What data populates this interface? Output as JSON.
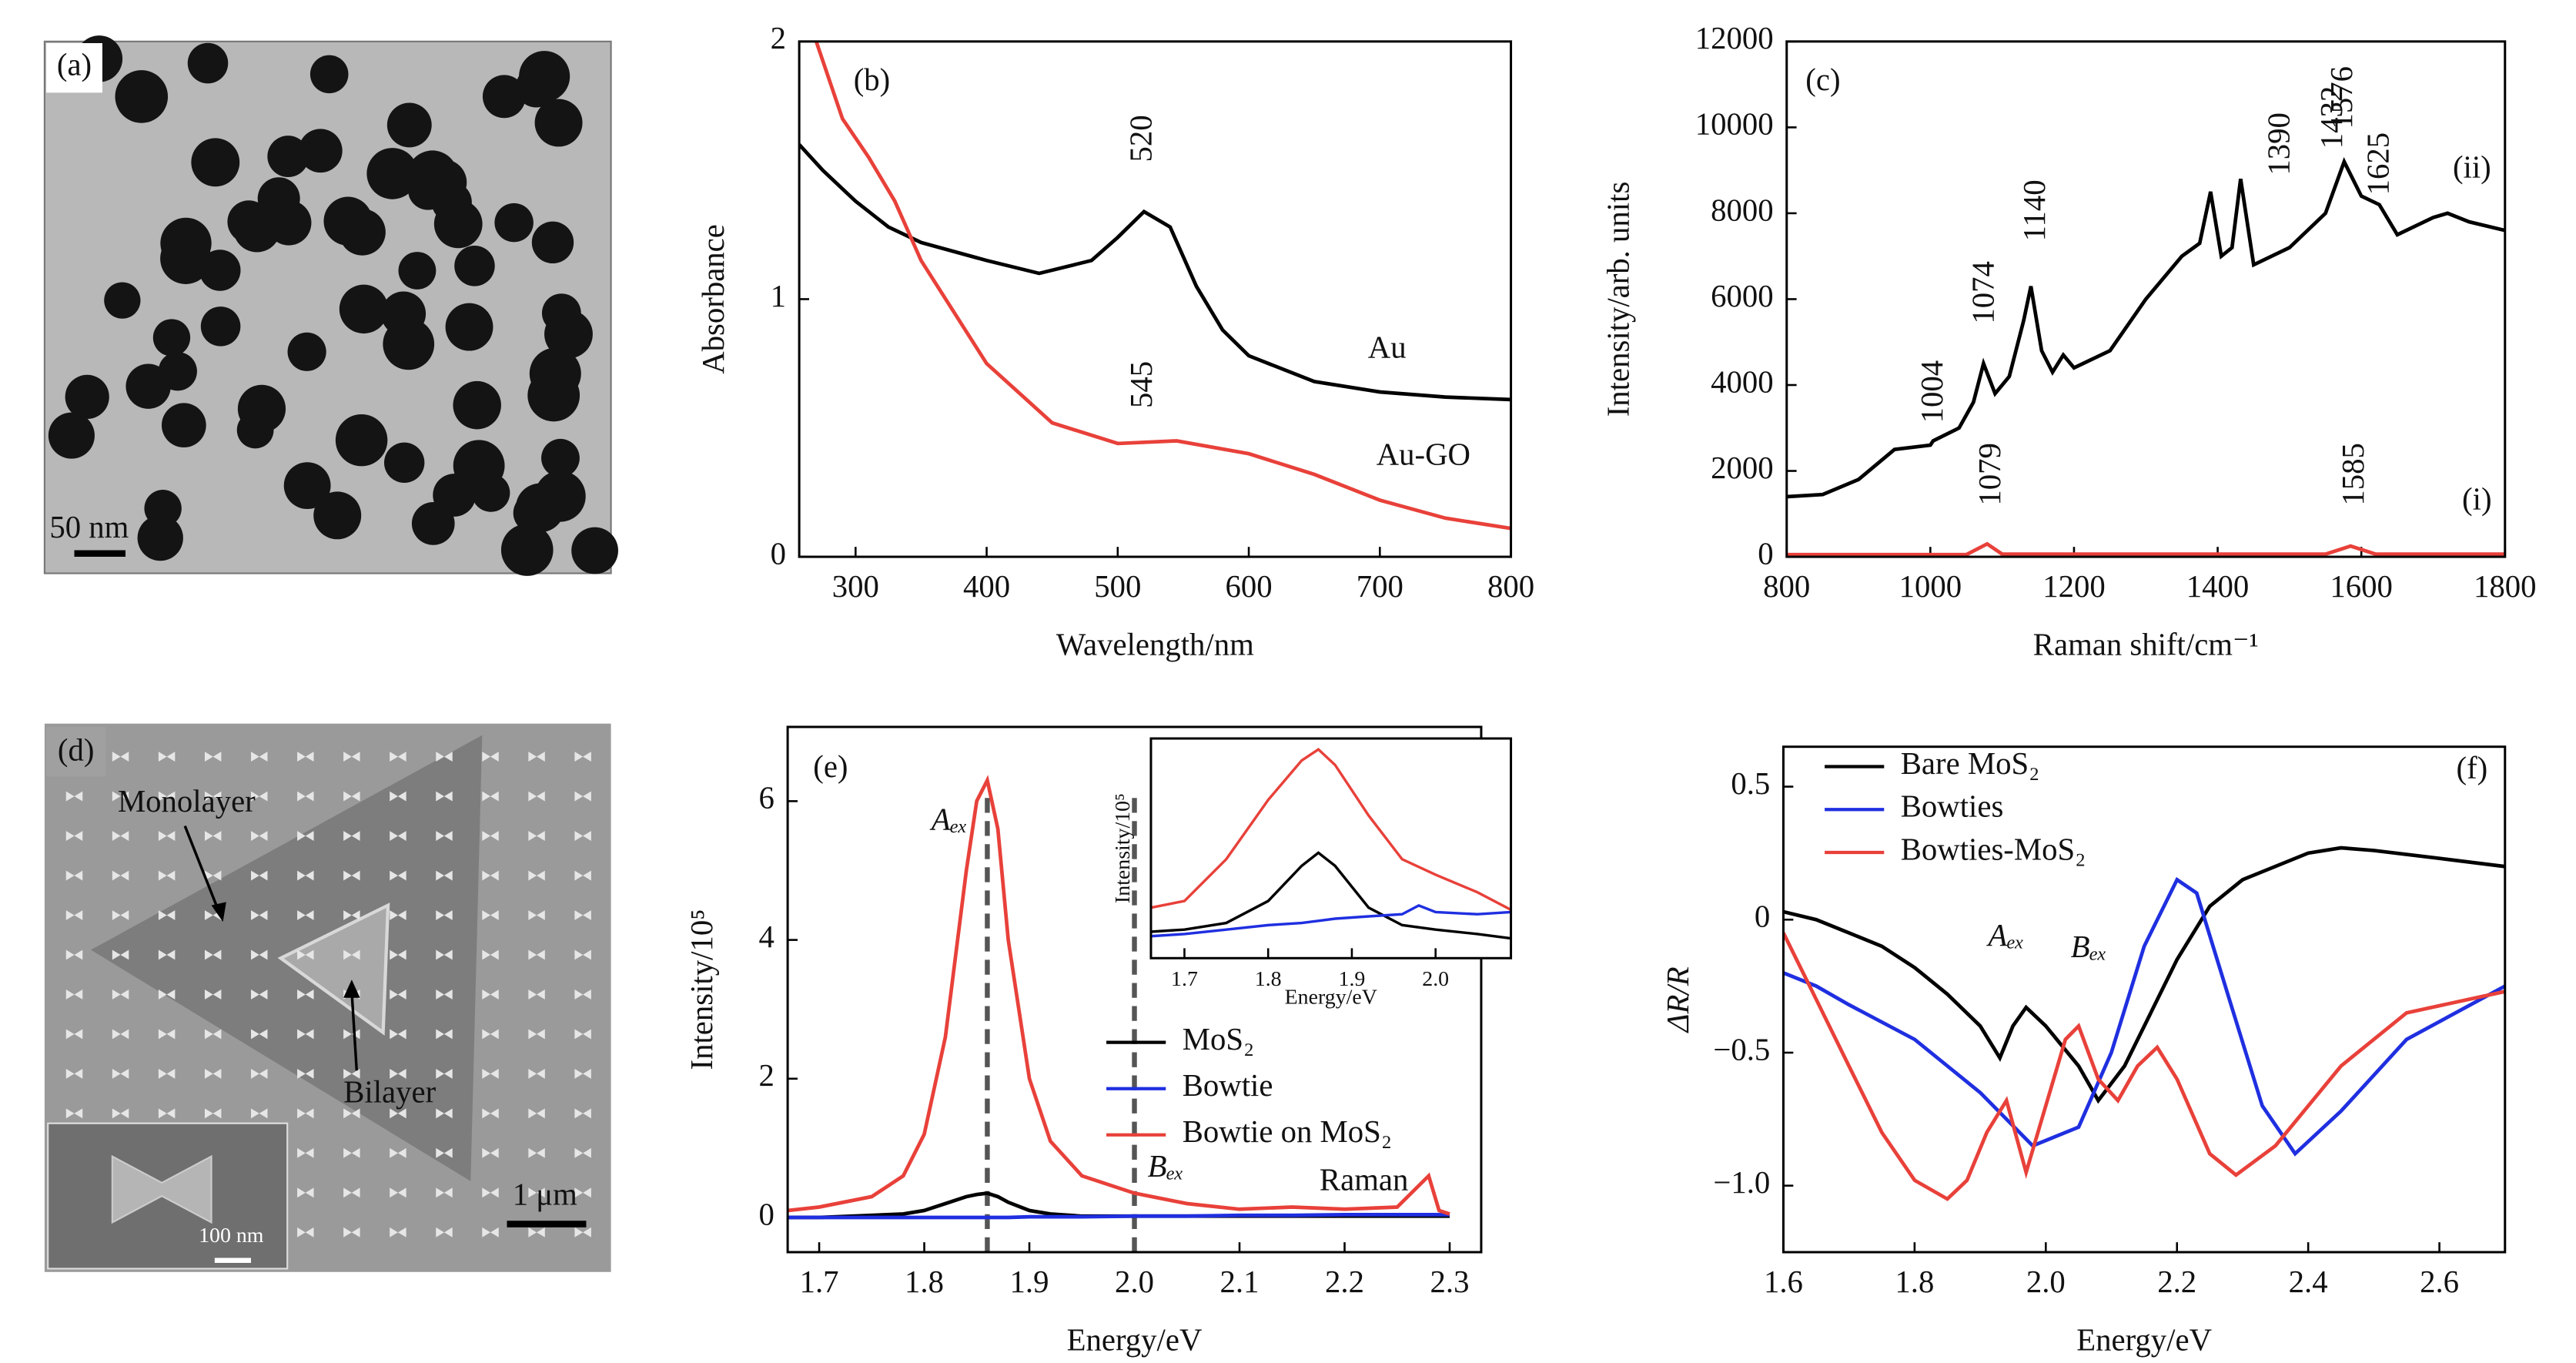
{
  "images": [
    {
      "label": "(a)",
      "scale_bar": "50 nm"
    },
    {
      "label": "(d)",
      "texts": [
        "Monolayer",
        "Bilayer"
      ],
      "scale_bar": "1 μm",
      "inset_scale_bar": "100 nm"
    }
  ],
  "chart_data": [
    {
      "type": "line",
      "panel": "(b)",
      "xlabel": "Wavelength/nm",
      "ylabel": "Absorbance",
      "xlim": [
        257,
        800
      ],
      "xticks": [
        300,
        400,
        500,
        600,
        700,
        800
      ],
      "ylim": [
        0,
        2
      ],
      "yticks": [
        0,
        1,
        2
      ],
      "legend": "inline",
      "series": [
        {
          "name": "Au",
          "color": "#000000",
          "x": [
            257,
            275,
            300,
            325,
            350,
            400,
            440,
            480,
            500,
            520,
            540,
            560,
            580,
            600,
            650,
            700,
            750,
            800
          ],
          "values": [
            1.6,
            1.5,
            1.38,
            1.28,
            1.22,
            1.15,
            1.1,
            1.15,
            1.24,
            1.34,
            1.28,
            1.05,
            0.88,
            0.78,
            0.68,
            0.64,
            0.62,
            0.61
          ]
        },
        {
          "name": "Au-GO",
          "color": "#e8413a",
          "x": [
            270,
            290,
            310,
            330,
            350,
            400,
            450,
            500,
            545,
            600,
            650,
            700,
            750,
            800
          ],
          "values": [
            2.0,
            1.7,
            1.55,
            1.38,
            1.15,
            0.75,
            0.52,
            0.44,
            0.45,
            0.4,
            0.32,
            0.22,
            0.15,
            0.11
          ]
        }
      ],
      "annotations": [
        "520",
        "545"
      ]
    },
    {
      "type": "line",
      "panel": "(c)",
      "xlabel": "Raman shift/cm⁻¹",
      "ylabel": "Intensity/arb. units",
      "xlim": [
        800,
        1800
      ],
      "xticks": [
        800,
        1000,
        1200,
        1400,
        1600,
        1800
      ],
      "ylim": [
        0,
        12000
      ],
      "yticks": [
        0,
        2000,
        4000,
        6000,
        8000,
        10000,
        12000
      ],
      "legend": "inline",
      "series": [
        {
          "name": "(ii)",
          "color": "#000000",
          "x": [
            800,
            850,
            900,
            950,
            1000,
            1004,
            1040,
            1060,
            1074,
            1090,
            1110,
            1130,
            1140,
            1155,
            1170,
            1185,
            1200,
            1250,
            1300,
            1350,
            1375,
            1390,
            1405,
            1420,
            1432,
            1450,
            1500,
            1550,
            1576,
            1600,
            1625,
            1650,
            1700,
            1720,
            1750,
            1800
          ],
          "values": [
            1400,
            1450,
            1800,
            2500,
            2600,
            2700,
            3000,
            3600,
            4500,
            3800,
            4200,
            5500,
            6300,
            4800,
            4300,
            4700,
            4400,
            4800,
            6000,
            7000,
            7300,
            8500,
            7000,
            7200,
            8800,
            6800,
            7200,
            8000,
            9200,
            8400,
            8200,
            7500,
            7900,
            8000,
            7800,
            7600
          ]
        },
        {
          "name": "(i)",
          "color": "#e8413a",
          "x": [
            800,
            1050,
            1079,
            1100,
            1550,
            1585,
            1620,
            1800
          ],
          "values": [
            50,
            50,
            300,
            60,
            60,
            250,
            60,
            60
          ]
        }
      ],
      "annotations": [
        "1004",
        "1074",
        "1140",
        "1390",
        "1432",
        "1576",
        "1625",
        "1079",
        "1585"
      ]
    },
    {
      "type": "line",
      "panel": "(e)",
      "xlabel": "Energy/eV",
      "ylabel": "Intensity/10⁵",
      "xlim": [
        1.67,
        2.33
      ],
      "xticks": [
        1.7,
        1.8,
        1.9,
        {
          "value": 2,
          "label": "2.0"
        },
        2.1,
        2.2,
        2.3
      ],
      "ylim": [
        -0.5,
        7.07
      ],
      "yticks": [
        0,
        2,
        4,
        6
      ],
      "legend": "lower right",
      "vlines": [
        1.86,
        2.0
      ],
      "series": [
        {
          "name": "MoS₂",
          "color": "#000000",
          "x": [
            1.67,
            1.7,
            1.75,
            1.78,
            1.8,
            1.82,
            1.84,
            1.85,
            1.86,
            1.87,
            1.88,
            1.9,
            1.92,
            1.95,
            2.0,
            2.05,
            2.1,
            2.15,
            2.2,
            2.25,
            2.28,
            2.29,
            2.3
          ],
          "values": [
            0,
            0,
            0.03,
            0.05,
            0.1,
            0.2,
            0.3,
            0.33,
            0.35,
            0.3,
            0.22,
            0.1,
            0.05,
            0.02,
            0.02,
            0.02,
            0.02,
            0.02,
            0.02,
            0.02,
            0.02,
            0.02,
            0.02
          ]
        },
        {
          "name": "Bowtie",
          "color": "#1f2fe0",
          "x": [
            1.67,
            1.7,
            1.75,
            1.78,
            1.8,
            1.82,
            1.84,
            1.85,
            1.86,
            1.87,
            1.88,
            1.9,
            1.92,
            1.95,
            2.0,
            2.05,
            2.1,
            2.15,
            2.2,
            2.25,
            2.28,
            2.29,
            2.3
          ],
          "values": [
            0,
            0,
            0,
            0,
            0,
            0,
            0,
            0,
            0,
            0,
            0,
            0.01,
            0.01,
            0.01,
            0.02,
            0.02,
            0.03,
            0.03,
            0.04,
            0.04,
            0.04,
            0.04,
            0.04
          ]
        },
        {
          "name": "Bowtie on MoS₂",
          "color": "#e8413a",
          "x": [
            1.67,
            1.7,
            1.75,
            1.78,
            1.8,
            1.82,
            1.84,
            1.85,
            1.86,
            1.87,
            1.88,
            1.9,
            1.92,
            1.95,
            2.0,
            2.05,
            2.1,
            2.15,
            2.2,
            2.25,
            2.28,
            2.29,
            2.3
          ],
          "values": [
            0.1,
            0.15,
            0.3,
            0.6,
            1.2,
            2.6,
            5.0,
            6.0,
            6.3,
            5.6,
            4.0,
            2.0,
            1.1,
            0.6,
            0.35,
            0.2,
            0.12,
            0.15,
            0.12,
            0.15,
            0.6,
            0.1,
            0.05
          ]
        }
      ],
      "annotations": [
        "Aₑₓ",
        "Bₑₓ",
        "Raman"
      ]
    },
    {
      "type": "line",
      "xlabel": "Energy/eV",
      "ylabel": "Intensity/10⁵",
      "xlim": [
        1.66,
        2.09
      ],
      "xticks": [
        1.7,
        1.8,
        1.9,
        {
          "value": 2,
          "label": "2.0"
        }
      ],
      "ylim": [
        0,
        10
      ],
      "series": [
        {
          "color": "#e8413a",
          "x": [
            1.66,
            1.7,
            1.75,
            1.8,
            1.84,
            1.86,
            1.88,
            1.92,
            1.96,
            2.0,
            2.05,
            2.09
          ],
          "values": [
            2.3,
            2.6,
            4.5,
            7.2,
            9.0,
            9.5,
            8.8,
            6.5,
            4.5,
            3.8,
            3.0,
            2.2
          ]
        },
        {
          "color": "#000000",
          "x": [
            1.66,
            1.7,
            1.75,
            1.8,
            1.84,
            1.86,
            1.88,
            1.92,
            1.96,
            2.0,
            2.05,
            2.09
          ],
          "values": [
            1.2,
            1.3,
            1.6,
            2.6,
            4.2,
            4.8,
            4.2,
            2.3,
            1.5,
            1.3,
            1.1,
            0.9
          ]
        },
        {
          "color": "#1f2fe0",
          "x": [
            1.66,
            1.7,
            1.75,
            1.8,
            1.84,
            1.86,
            1.88,
            1.92,
            1.96,
            1.98,
            2.0,
            2.05,
            2.09
          ],
          "values": [
            1.0,
            1.1,
            1.3,
            1.5,
            1.6,
            1.7,
            1.8,
            1.9,
            2.0,
            2.4,
            2.1,
            2.0,
            2.1
          ]
        }
      ]
    },
    {
      "type": "line",
      "panel": "(f)",
      "xlabel": "Energy/eV",
      "ylabel": "ΔR/R",
      "xlim": [
        1.6,
        2.7
      ],
      "xticks": [
        1.6,
        1.8,
        {
          "value": 2,
          "label": "2.0"
        },
        2.2,
        2.4,
        2.6
      ],
      "ylim": [
        -1.25,
        0.65
      ],
      "yticks": [
        {
          "value": -1,
          "label": "−1.0"
        },
        {
          "value": -0.5,
          "label": "−0.5"
        },
        0,
        0.5
      ],
      "legend": "upper left",
      "series": [
        {
          "name": "Bare MoS₂",
          "color": "#000000",
          "x": [
            1.6,
            1.65,
            1.7,
            1.75,
            1.8,
            1.85,
            1.9,
            1.93,
            1.95,
            1.97,
            2.0,
            2.05,
            2.08,
            2.12,
            2.16,
            2.2,
            2.25,
            2.3,
            2.4,
            2.45,
            2.5,
            2.6,
            2.7
          ],
          "values": [
            0.03,
            0.0,
            -0.05,
            -0.1,
            -0.18,
            -0.28,
            -0.4,
            -0.52,
            -0.4,
            -0.33,
            -0.4,
            -0.55,
            -0.68,
            -0.55,
            -0.35,
            -0.15,
            0.05,
            0.15,
            0.25,
            0.27,
            0.26,
            0.23,
            0.2
          ]
        },
        {
          "name": "Bowties",
          "color": "#1f2fe0",
          "x": [
            1.6,
            1.65,
            1.7,
            1.8,
            1.9,
            1.98,
            2.05,
            2.1,
            2.15,
            2.2,
            2.23,
            2.28,
            2.33,
            2.38,
            2.45,
            2.55,
            2.7
          ],
          "values": [
            -0.2,
            -0.25,
            -0.32,
            -0.45,
            -0.65,
            -0.85,
            -0.78,
            -0.5,
            -0.1,
            0.15,
            0.1,
            -0.3,
            -0.7,
            -0.88,
            -0.72,
            -0.45,
            -0.25
          ]
        },
        {
          "name": "Bowties-MoS₂",
          "color": "#e8413a",
          "x": [
            1.6,
            1.65,
            1.7,
            1.75,
            1.8,
            1.85,
            1.88,
            1.91,
            1.94,
            1.97,
            2.0,
            2.03,
            2.05,
            2.08,
            2.11,
            2.14,
            2.17,
            2.2,
            2.25,
            2.29,
            2.35,
            2.45,
            2.55,
            2.7
          ],
          "values": [
            -0.05,
            -0.3,
            -0.55,
            -0.8,
            -0.98,
            -1.05,
            -0.98,
            -0.8,
            -0.68,
            -0.95,
            -0.7,
            -0.45,
            -0.4,
            -0.6,
            -0.68,
            -0.55,
            -0.48,
            -0.6,
            -0.88,
            -0.96,
            -0.85,
            -0.55,
            -0.35,
            -0.27
          ]
        }
      ],
      "annotations": [
        "Aₑₓ",
        "Bₑₓ"
      ]
    }
  ]
}
